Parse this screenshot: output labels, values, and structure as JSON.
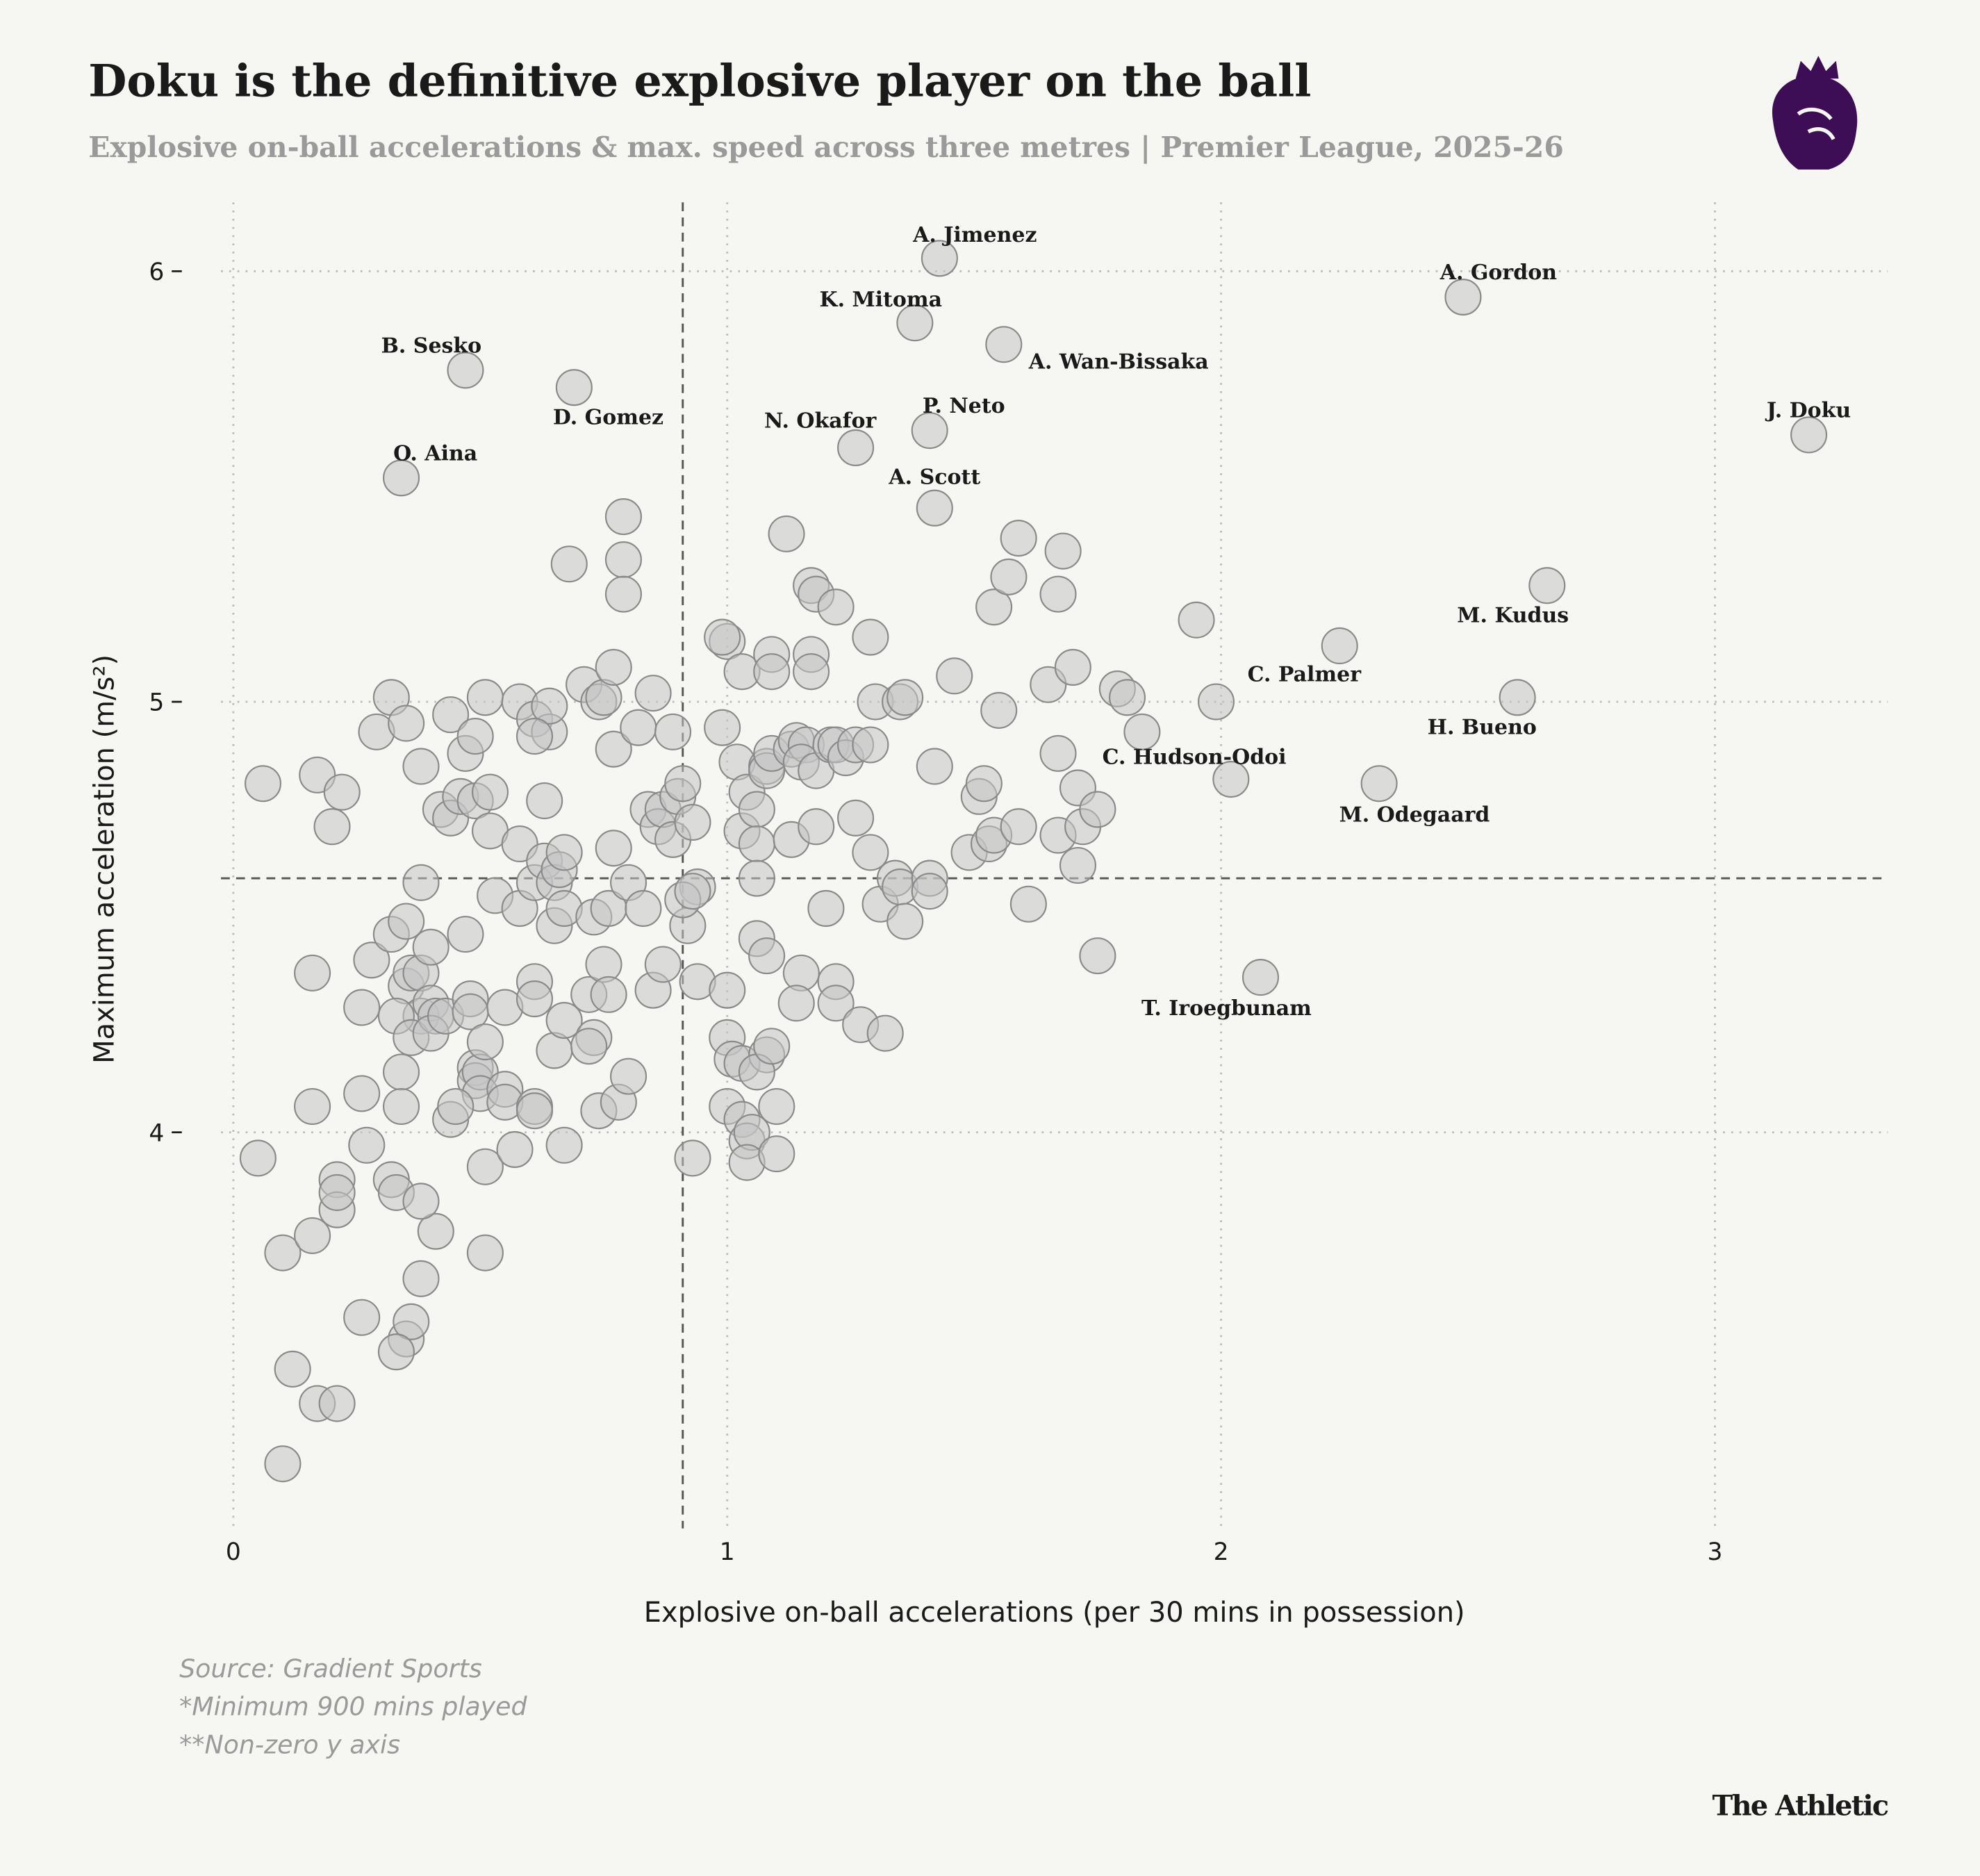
{
  "chart_data": {
    "type": "scatter",
    "title": "Doku is the definitive explosive player on the ball",
    "subtitle": "Explosive on-ball accelerations & max. speed across three metres | Premier League, 2025-26",
    "x_label": "Explosive on-ball accelerations (per 30 mins in possession)",
    "y_label": "Maximum acceleration (m/s²)",
    "notes": [
      "Source: Gradient Sports",
      "*Minimum 900 mins played",
      "**Non-zero y axis"
    ],
    "brand": "The Athletic",
    "xlim": [
      -0.025,
      3.35
    ],
    "ylim": [
      3.08,
      6.16
    ],
    "xticks": [
      0,
      1,
      2,
      3
    ],
    "yticks": [
      4,
      5,
      6
    ],
    "grid": true,
    "reference_lines": {
      "x": 0.91,
      "y": 4.59
    },
    "color": "#c4c4c4",
    "labels": [
      "A. Jimenez",
      "A. Gordon",
      "J. Doku",
      "B. Sesko",
      "O. Aina",
      "D. Gomez",
      "K. Mitoma",
      "A. Wan-Bissaka",
      "P. Neto",
      "N. Okafor",
      "A. Scott",
      "M. Kudus",
      "C. Palmer",
      "H. Bueno",
      "C. Hudson-Odoi",
      "M. Odegaard",
      "T. Iroegbunam"
    ],
    "x": [
      1.43,
      2.49,
      3.19,
      0.47,
      0.34,
      0.69,
      1.38,
      1.56,
      1.41,
      1.26,
      1.42,
      2.66,
      2.24,
      2.6,
      2.02,
      2.32,
      2.08,
      0.06,
      0.05,
      0.1,
      0.12,
      0.1,
      0.17,
      0.21,
      0.16,
      0.16,
      0.16,
      0.17,
      0.2,
      0.22,
      0.21,
      0.21,
      0.21,
      0.26,
      0.27,
      0.26,
      0.26,
      0.28,
      0.29,
      0.32,
      0.35,
      0.32,
      0.35,
      0.32,
      0.33,
      0.35,
      0.36,
      0.33,
      0.38,
      0.41,
      0.38,
      0.38,
      0.38,
      0.35,
      0.36,
      0.38,
      0.33,
      0.34,
      0.36,
      0.34,
      0.38,
      0.4,
      0.4,
      0.41,
      0.4,
      0.43,
      0.44,
      0.42,
      0.44,
      0.46,
      0.47,
      0.47,
      0.49,
      0.49,
      0.51,
      0.52,
      0.52,
      0.48,
      0.48,
      0.49,
      0.49,
      0.5,
      0.5,
      0.51,
      0.51,
      0.51,
      0.44,
      0.45,
      0.55,
      0.55,
      0.55,
      0.53,
      0.58,
      0.58,
      0.57,
      0.58,
      0.61,
      0.63,
      0.64,
      0.64,
      0.61,
      0.61,
      0.61,
      0.61,
      0.61,
      0.61,
      0.63,
      0.65,
      0.65,
      0.66,
      0.67,
      0.67,
      0.65,
      0.67,
      0.67,
      0.68,
      0.71,
      0.73,
      0.74,
      0.75,
      0.77,
      0.77,
      0.77,
      0.79,
      0.79,
      0.79,
      0.74,
      0.73,
      0.72,
      0.72,
      0.75,
      0.76,
      0.76,
      0.78,
      0.8,
      0.8,
      0.82,
      0.83,
      0.84,
      0.85,
      0.86,
      0.85,
      0.87,
      0.87,
      0.89,
      0.89,
      0.9,
      0.91,
      0.92,
      0.93,
      0.94,
      0.94,
      0.93,
      0.91,
      0.93,
      0.99,
      1.0,
      1.03,
      1.02,
      0.99,
      1.03,
      1.04,
      1.06,
      1.06,
      1.06,
      1.06,
      1.08,
      1.0,
      1.0,
      1.01,
      1.03,
      1.0,
      1.03,
      1.04,
      1.05,
      1.04,
      1.08,
      1.06,
      1.09,
      1.1,
      1.1,
      1.09,
      1.09,
      1.08,
      1.08,
      1.09,
      1.12,
      1.13,
      1.13,
      1.14,
      1.16,
      1.15,
      1.17,
      1.18,
      1.17,
      1.17,
      1.18,
      1.18,
      1.2,
      1.15,
      1.14,
      1.21,
      1.22,
      1.22,
      1.22,
      1.22,
      1.24,
      1.26,
      1.26,
      1.29,
      1.29,
      1.29,
      1.3,
      1.27,
      1.31,
      1.35,
      1.36,
      1.34,
      1.35,
      1.36,
      1.41,
      1.41,
      1.42,
      1.46,
      1.32,
      1.49,
      1.51,
      1.52,
      1.54,
      1.55,
      1.53,
      1.54,
      1.57,
      1.59,
      1.59,
      1.61,
      1.65,
      1.67,
      1.68,
      1.67,
      1.67,
      1.7,
      1.71,
      1.72,
      1.71,
      1.75,
      1.75,
      1.79,
      1.81,
      1.84,
      1.95,
      1.99
    ],
    "y": [
      6.03,
      5.94,
      5.62,
      5.77,
      5.52,
      5.73,
      5.88,
      5.83,
      5.63,
      5.59,
      5.45,
      5.27,
      5.13,
      5.01,
      4.82,
      4.81,
      4.36,
      4.81,
      3.94,
      3.72,
      3.45,
      3.23,
      3.37,
      3.37,
      3.76,
      4.06,
      4.37,
      4.83,
      4.71,
      4.79,
      3.89,
      3.82,
      3.86,
      3.57,
      3.97,
      4.09,
      4.29,
      4.4,
      4.93,
      5.01,
      4.95,
      4.46,
      4.49,
      3.89,
      3.86,
      3.52,
      3.56,
      3.49,
      3.66,
      3.77,
      3.84,
      4.85,
      4.58,
      4.34,
      4.37,
      4.27,
      4.27,
      4.14,
      4.22,
      4.06,
      4.37,
      4.43,
      4.3,
      4.27,
      4.23,
      4.27,
      4.97,
      4.75,
      4.73,
      4.78,
      4.46,
      4.88,
      4.92,
      4.77,
      5.01,
      4.79,
      4.7,
      4.31,
      4.28,
      4.15,
      4.12,
      4.14,
      4.09,
      4.21,
      3.92,
      3.72,
      4.03,
      4.06,
      4.29,
      4.1,
      4.07,
      4.55,
      4.67,
      4.52,
      3.96,
      5.0,
      4.96,
      4.77,
      4.93,
      4.99,
      4.92,
      4.35,
      4.31,
      4.06,
      4.05,
      4.58,
      4.63,
      4.58,
      4.48,
      4.61,
      4.65,
      4.52,
      4.19,
      4.26,
      3.97,
      5.32,
      5.04,
      4.5,
      5.0,
      5.01,
      5.08,
      4.89,
      4.66,
      5.43,
      5.33,
      5.25,
      4.05,
      4.22,
      4.2,
      4.32,
      4.39,
      4.32,
      4.52,
      4.07,
      4.58,
      4.13,
      4.94,
      4.52,
      4.75,
      5.02,
      4.71,
      4.33,
      4.39,
      4.75,
      4.68,
      4.93,
      4.78,
      4.81,
      4.48,
      4.72,
      4.57,
      4.35,
      3.94,
      4.54,
      4.56,
      4.94,
      5.14,
      5.07,
      4.86,
      5.15,
      4.7,
      4.79,
      4.75,
      4.67,
      4.59,
      4.45,
      4.41,
      4.33,
      4.22,
      4.17,
      4.16,
      4.06,
      4.03,
      3.98,
      4.0,
      3.93,
      4.18,
      4.14,
      4.2,
      4.06,
      3.95,
      5.11,
      5.07,
      4.85,
      4.84,
      4.88,
      5.39,
      4.68,
      4.89,
      4.91,
      4.9,
      4.86,
      5.11,
      4.84,
      5.07,
      5.27,
      5.25,
      4.71,
      4.52,
      4.37,
      4.3,
      4.9,
      5.22,
      4.9,
      4.35,
      4.3,
      4.87,
      4.9,
      4.73,
      4.9,
      5.15,
      4.65,
      5.0,
      4.25,
      4.53,
      5.0,
      5.01,
      4.59,
      4.57,
      4.49,
      4.59,
      4.56,
      4.85,
      5.06,
      4.23,
      4.65,
      4.78,
      4.81,
      5.22,
      4.98,
      4.67,
      4.69,
      5.29,
      5.38,
      4.71,
      4.53,
      5.04,
      5.25,
      5.35,
      4.88,
      4.69,
      5.08,
      4.8,
      4.71,
      4.62,
      4.75,
      4.41,
      5.03,
      5.01,
      4.93,
      5.19,
      5.0
    ]
  }
}
